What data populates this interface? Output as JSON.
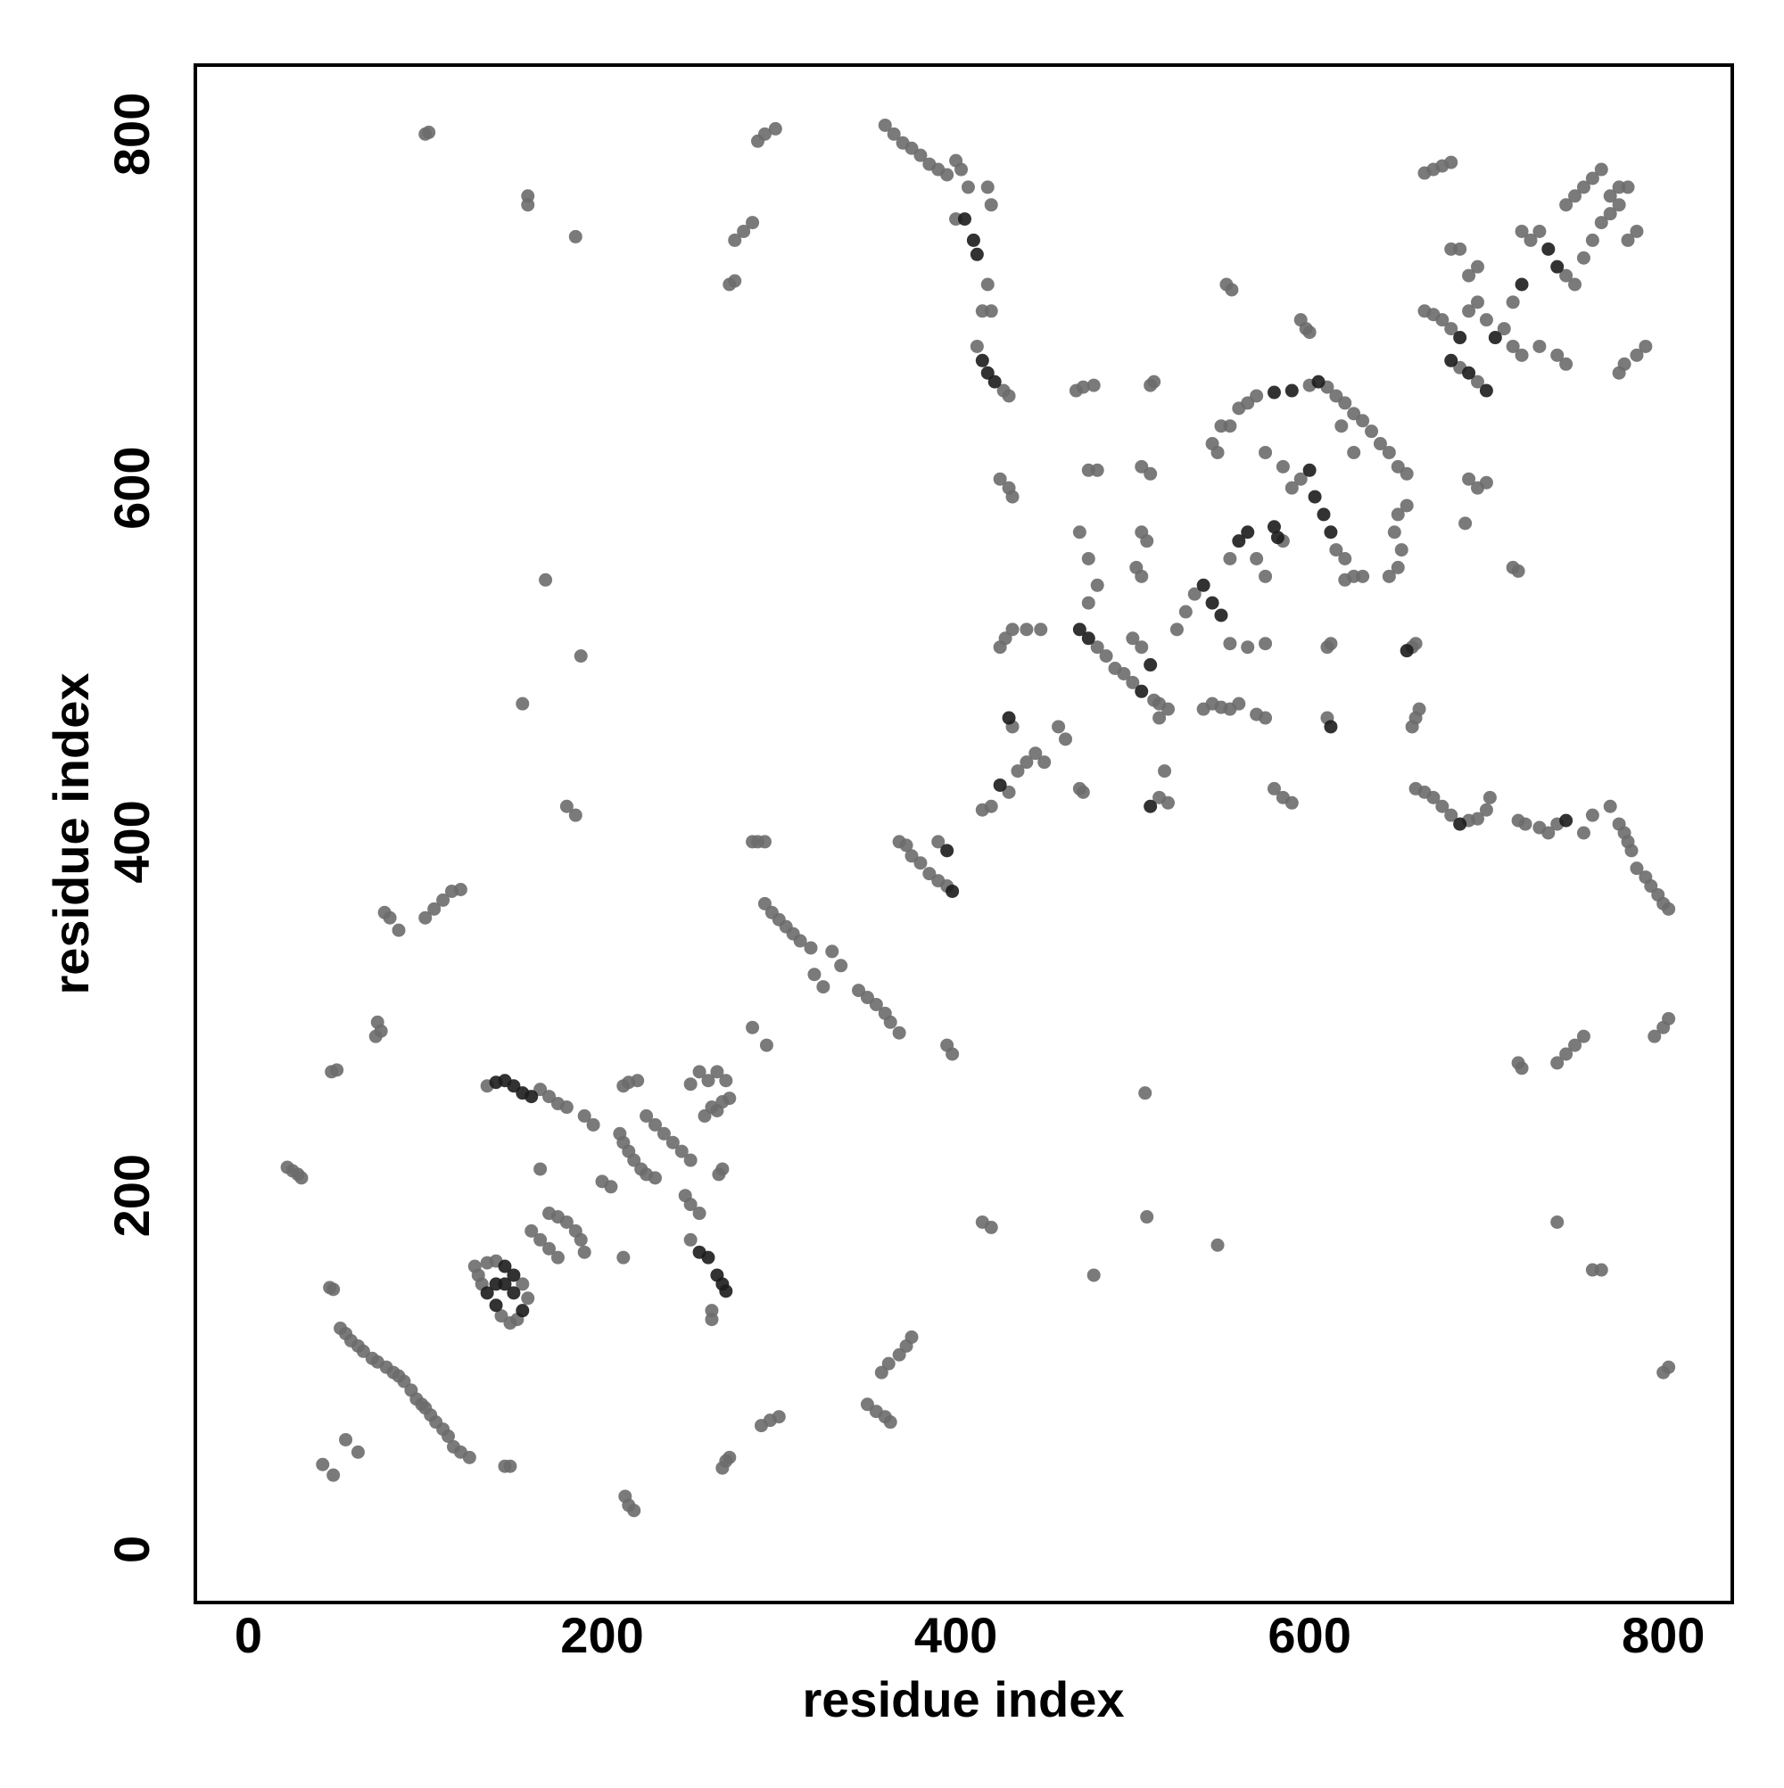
{
  "chart_data": {
    "type": "scatter",
    "xlabel": "residue index",
    "ylabel": "residue index",
    "xlim": [
      -30,
      839
    ],
    "ylim": [
      -30,
      839
    ],
    "xticks": [
      0,
      200,
      400,
      600,
      800
    ],
    "yticks": [
      0,
      200,
      400,
      600,
      800
    ],
    "grid": false,
    "series": [
      {
        "color": "#6b6b6b",
        "x": [
          22,
          25,
          28,
          30,
          46,
          48,
          52,
          55,
          58,
          62,
          65,
          70,
          73,
          78,
          82,
          85,
          88,
          92,
          95,
          98,
          100,
          103,
          106,
          110,
          113,
          116,
          120,
          125,
          42,
          48,
          55,
          62,
          100,
          102,
          158,
          158,
          185,
          77,
          80,
          85,
          73,
          75,
          72,
          47,
          50,
          100,
          105,
          110,
          115,
          120,
          145,
          148,
          168,
          188,
          155,
          180,
          185,
          128,
          130,
          132,
          143,
          148,
          152,
          158,
          155,
          140,
          135,
          135,
          165,
          170,
          175,
          180,
          190,
          195,
          160,
          165,
          170,
          175,
          170,
          175,
          180,
          185,
          188,
          190,
          165,
          200,
          205,
          210,
          212,
          215,
          218,
          222,
          225,
          230,
          225,
          230,
          235,
          240,
          245,
          250,
          212,
          215,
          220,
          247,
          250,
          255,
          250,
          262,
          262,
          250,
          255,
          260,
          265,
          270,
          265,
          268,
          272,
          258,
          262,
          266,
          268,
          212,
          213,
          215,
          218,
          288,
          292,
          298,
          275,
          280,
          285,
          272,
          275,
          285,
          288,
          292,
          285,
          293,
          292,
          296,
          300,
          304,
          308,
          312,
          318,
          320,
          325,
          330,
          335,
          345,
          350,
          355,
          360,
          363,
          368,
          270,
          272,
          268,
          290,
          295,
          300,
          350,
          355,
          360,
          363,
          358,
          362,
          368,
          372,
          375,
          395,
          398,
          368,
          372,
          375,
          380,
          385,
          390,
          395,
          390,
          360,
          365,
          370,
          375,
          380,
          385,
          390,
          395,
          400,
          403,
          407,
          400,
          418,
          420,
          418,
          420,
          415,
          412,
          427,
          430,
          425,
          430,
          432,
          415,
          420,
          478,
          508,
          548,
          507,
          415,
          420,
          430,
          435,
          440,
          445,
          450,
          458,
          462,
          470,
          472,
          432,
          425,
          428,
          432,
          440,
          448,
          480,
          485,
          490,
          495,
          500,
          515,
          520,
          475,
          480,
          475,
          470,
          475,
          480,
          468,
          472,
          478,
          510,
          512,
          505,
          510,
          505,
          508,
          502,
          505,
          500,
          505,
          512,
          515,
          518,
          515,
          520,
          540,
          545,
          550,
          555,
          560,
          570,
          575,
          565,
          575,
          555,
          580,
          585,
          590,
          610,
          610,
          612,
          525,
          530,
          535,
          555,
          570,
          575,
          585,
          590,
          595,
          615,
          620,
          575,
          585,
          555,
          560,
          565,
          570,
          600,
          610,
          615,
          620,
          625,
          630,
          635,
          640,
          645,
          650,
          655,
          655,
          650,
          648,
          652,
          650,
          645,
          620,
          625,
          630,
          625,
          618,
          545,
          548,
          550,
          595,
          598,
          600,
          660,
          658,
          662,
          660,
          665,
          670,
          675,
          680,
          690,
          695,
          700,
          702,
          718,
          722,
          730,
          735,
          740,
          755,
          760,
          770,
          775,
          778,
          780,
          782,
          785,
          790,
          793,
          797,
          800,
          803,
          690,
          695,
          700,
          688,
          715,
          718,
          718,
          720,
          740,
          745,
          750,
          755,
          740,
          760,
          765,
          800,
          803,
          795,
          800,
          803,
          553,
          556,
          658,
          660,
          665,
          670,
          675,
          680,
          680,
          685,
          665,
          670,
          675,
          680,
          690,
          695,
          700,
          710,
          715,
          715,
          720,
          730,
          740,
          745,
          685,
          695,
          720,
          725,
          730,
          745,
          750,
          755,
          760,
          765,
          770,
          775,
          780,
          745,
          750,
          755,
          760,
          765,
          770,
          775,
          780,
          785,
          775,
          778,
          785,
          790,
          690,
          695
        ],
        "y": [
          216,
          214,
          212,
          210,
          148,
          147,
          125,
          122,
          118,
          115,
          112,
          108,
          106,
          103,
          100,
          98,
          95,
          90,
          85,
          82,
          80,
          76,
          72,
          68,
          64,
          58,
          55,
          52,
          48,
          42,
          62,
          55,
          800,
          801,
          765,
          760,
          742,
          360,
          357,
          350,
          298,
          293,
          290,
          270,
          271,
          357,
          362,
          367,
          372,
          373,
          47,
          47,
          548,
          505,
          478,
          420,
          415,
          160,
          155,
          150,
          132,
          128,
          130,
          142,
          150,
          163,
          162,
          262,
          260,
          256,
          252,
          250,
          245,
          240,
          180,
          175,
          170,
          165,
          190,
          188,
          185,
          180,
          175,
          168,
          215,
          208,
          205,
          235,
          230,
          225,
          220,
          215,
          212,
          210,
          245,
          240,
          235,
          230,
          225,
          220,
          262,
          264,
          265,
          200,
          195,
          190,
          175,
          135,
          130,
          263,
          270,
          265,
          270,
          265,
          248,
          253,
          255,
          245,
          250,
          212,
          215,
          165,
          30,
          25,
          22,
          796,
          800,
          803,
          740,
          745,
          750,
          715,
          717,
          400,
          400,
          400,
          295,
          285,
          365,
          360,
          356,
          352,
          348,
          344,
          340,
          325,
          318,
          338,
          330,
          316,
          312,
          308,
          303,
          298,
          292,
          50,
          52,
          46,
          70,
          73,
          75,
          82,
          78,
          75,
          72,
          100,
          105,
          110,
          115,
          120,
          285,
          280,
          400,
          398,
          392,
          388,
          382,
          378,
          375,
          400,
          805,
          800,
          795,
          792,
          788,
          783,
          780,
          777,
          785,
          780,
          770,
          752,
          770,
          760,
          715,
          700,
          700,
          680,
          655,
          652,
          605,
          600,
          595,
          185,
          182,
          155,
          188,
          172,
          258,
          418,
          420,
          428,
          440,
          445,
          450,
          445,
          465,
          458,
          430,
          428,
          465,
          510,
          515,
          520,
          520,
          520,
          510,
          505,
          498,
          495,
          490,
          478,
          475,
          535,
          545,
          560,
          575,
          610,
          610,
          655,
          657,
          658,
          658,
          660,
          612,
          608,
          575,
          570,
          555,
          550,
          515,
          510,
          480,
          470,
          440,
          425,
          422,
          475,
          478,
          476,
          475,
          478,
          472,
          470,
          510,
          512,
          512,
          430,
          425,
          422,
          470,
          510,
          512,
          520,
          530,
          540,
          560,
          560,
          550,
          570,
          600,
          605,
          565,
          560,
          620,
          612,
          635,
          645,
          648,
          652,
          658,
          657,
          652,
          648,
          642,
          638,
          632,
          625,
          620,
          612,
          608,
          590,
          585,
          575,
          565,
          555,
          550,
          548,
          550,
          550,
          620,
          635,
          625,
          620,
          635,
          695,
          690,
          688,
          470,
          465,
          475,
          430,
          428,
          425,
          420,
          415,
          412,
          413,
          418,
          425,
          412,
          410,
          408,
          405,
          410,
          405,
          415,
          420,
          410,
          405,
          400,
          395,
          385,
          380,
          375,
          370,
          365,
          362,
          605,
          600,
          603,
          580,
          555,
          553,
          275,
          272,
          275,
          280,
          285,
          290,
          185,
          158,
          158,
          100,
          103,
          290,
          295,
          300,
          715,
          712,
          510,
          512,
          778,
          780,
          782,
          784,
          735,
          735,
          700,
          698,
          695,
          690,
          700,
          705,
          695,
          690,
          705,
          680,
          675,
          680,
          675,
          670,
          668,
          660,
          745,
          740,
          745,
          720,
          715,
          730,
          740,
          750,
          755,
          760,
          770,
          760,
          765,
          770,
          775,
          780,
          765,
          770,
          740,
          745,
          665,
          670,
          675,
          680,
          720,
          725
        ]
      },
      {
        "color": "#1c1c1c",
        "x": [
          140,
          145,
          150,
          145,
          135,
          140,
          150,
          155,
          140,
          145,
          150,
          155,
          160,
          260,
          265,
          268,
          270,
          255,
          405,
          410,
          412,
          415,
          418,
          422,
          395,
          398,
          430,
          425,
          470,
          475,
          510,
          505,
          540,
          545,
          550,
          560,
          565,
          580,
          582,
          600,
          603,
          608,
          612,
          580,
          590,
          605,
          685,
          690,
          700,
          705,
          720,
          680,
          735,
          740,
          510,
          612,
          655,
          685,
          745
        ],
        "y": [
          150,
          150,
          145,
          160,
          145,
          138,
          155,
          135,
          264,
          265,
          262,
          258,
          256,
          165,
          155,
          150,
          146,
          168,
          752,
          740,
          732,
          672,
          665,
          660,
          395,
          372,
          470,
          432,
          520,
          515,
          500,
          485,
          545,
          535,
          528,
          570,
          575,
          578,
          572,
          610,
          595,
          585,
          575,
          654,
          655,
          660,
          685,
          665,
          655,
          685,
          715,
          672,
          735,
          725,
          420,
          465,
          508,
          410,
          412
        ]
      }
    ]
  }
}
